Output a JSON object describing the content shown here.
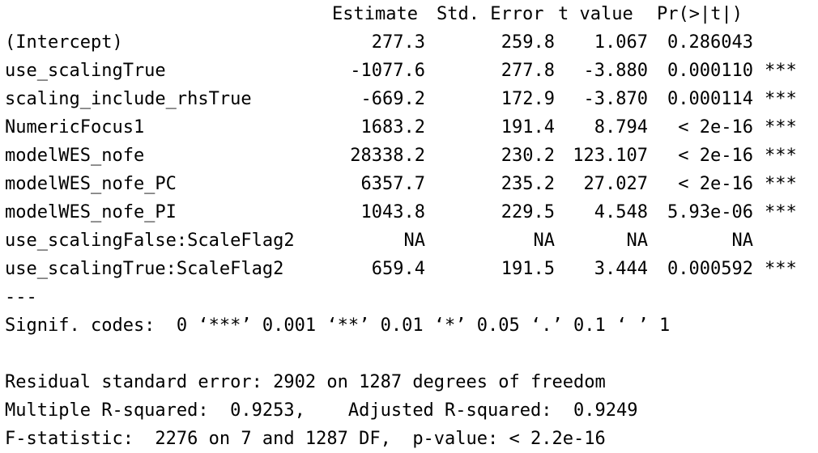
{
  "header": {
    "estimate": "Estimate",
    "std_error": "Std. Error",
    "t_value": "t value",
    "p_value": "Pr(>|t|)"
  },
  "rows": [
    {
      "name": "(Intercept)",
      "estimate": "277.3",
      "std_error": "259.8",
      "t_value": "1.067",
      "p_value": "0.286043",
      "sig": ""
    },
    {
      "name": "use_scalingTrue",
      "estimate": "-1077.6",
      "std_error": "277.8",
      "t_value": "-3.880",
      "p_value": "0.000110",
      "sig": "***"
    },
    {
      "name": "scaling_include_rhsTrue",
      "estimate": "-669.2",
      "std_error": "172.9",
      "t_value": "-3.870",
      "p_value": "0.000114",
      "sig": "***"
    },
    {
      "name": "NumericFocus1",
      "estimate": "1683.2",
      "std_error": "191.4",
      "t_value": "8.794",
      "p_value": "< 2e-16",
      "sig": "***"
    },
    {
      "name": "modelWES_nofe",
      "estimate": "28338.2",
      "std_error": "230.2",
      "t_value": "123.107",
      "p_value": "< 2e-16",
      "sig": "***"
    },
    {
      "name": "modelWES_nofe_PC",
      "estimate": "6357.7",
      "std_error": "235.2",
      "t_value": "27.027",
      "p_value": "< 2e-16",
      "sig": "***"
    },
    {
      "name": "modelWES_nofe_PI",
      "estimate": "1043.8",
      "std_error": "229.5",
      "t_value": "4.548",
      "p_value": "5.93e-06",
      "sig": "***"
    },
    {
      "name": "use_scalingFalse:ScaleFlag2",
      "estimate": "NA",
      "std_error": "NA",
      "t_value": "NA",
      "p_value": "NA",
      "sig": ""
    },
    {
      "name": "use_scalingTrue:ScaleFlag2",
      "estimate": "659.4",
      "std_error": "191.5",
      "t_value": "3.444",
      "p_value": "0.000592",
      "sig": "***"
    }
  ],
  "separator": "---",
  "signif_codes": "Signif. codes:  0 ‘***’ 0.001 ‘**’ 0.01 ‘*’ 0.05 ‘.’ 0.1 ‘ ’ 1",
  "residual_se": "Residual standard error: 2902 on 1287 degrees of freedom",
  "r_squared": "Multiple R-squared:  0.9253,\tAdjusted R-squared:  0.9249",
  "f_statistic": "F-statistic:  2276 on 7 and 1287 DF,  p-value: < 2.2e-16"
}
